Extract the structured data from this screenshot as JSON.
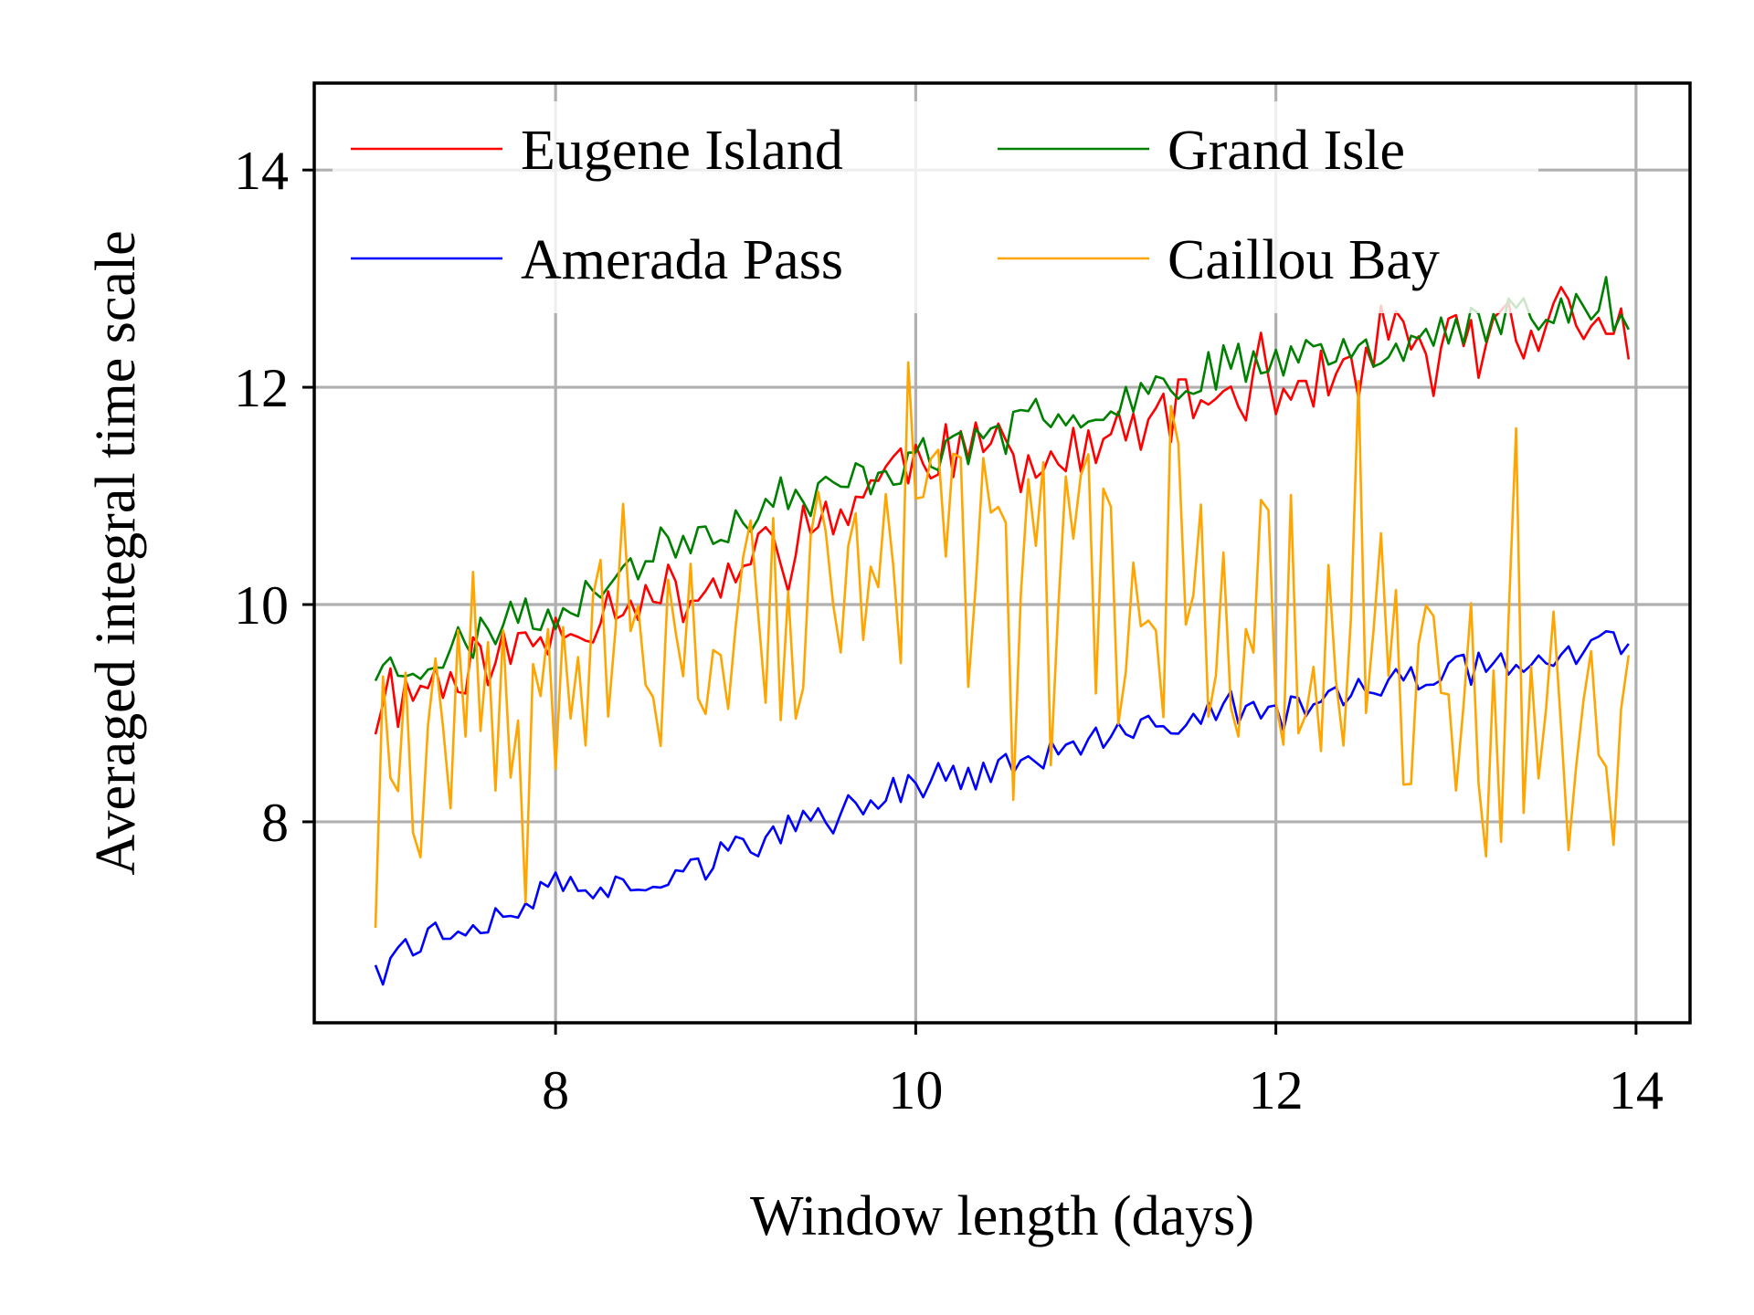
{
  "chart_data": {
    "type": "line",
    "xlabel": "Window length (days)",
    "ylabel": "Averaged integral time scale",
    "xlim": [
      6.66,
      14.3
    ],
    "ylim": [
      6.15,
      14.8
    ],
    "xticks": [
      8,
      10,
      12,
      14
    ],
    "yticks": [
      8,
      10,
      12,
      14
    ],
    "xtick_labels": [
      "8",
      "10",
      "12",
      "14"
    ],
    "ytick_labels": [
      "8",
      "10",
      "12",
      "14"
    ],
    "grid": true,
    "legend_position": "top-left",
    "legend_columns": 2,
    "x": {
      "start": 7.0,
      "step": 0.04167,
      "count": 168
    },
    "series": [
      {
        "name": "Eugene Island",
        "color": "#ff0000",
        "anchors": [
          [
            7.0,
            8.95
          ],
          [
            7.3,
            9.3
          ],
          [
            7.6,
            9.5
          ],
          [
            8.0,
            9.7
          ],
          [
            8.4,
            10.1
          ],
          [
            8.8,
            10.1
          ],
          [
            9.2,
            10.5
          ],
          [
            9.6,
            10.9
          ],
          [
            10.0,
            11.4
          ],
          [
            10.4,
            11.4
          ],
          [
            10.8,
            11.3
          ],
          [
            11.2,
            11.6
          ],
          [
            11.6,
            11.9
          ],
          [
            12.0,
            12.0
          ],
          [
            12.4,
            12.1
          ],
          [
            12.8,
            12.4
          ],
          [
            13.2,
            12.5
          ],
          [
            13.6,
            12.6
          ],
          [
            13.96,
            12.5
          ]
        ],
        "noise": 0.28,
        "seed": 11
      },
      {
        "name": "Grand Isle",
        "color": "#008000",
        "anchors": [
          [
            7.0,
            9.4
          ],
          [
            7.3,
            9.5
          ],
          [
            7.6,
            9.75
          ],
          [
            8.0,
            9.95
          ],
          [
            8.4,
            10.35
          ],
          [
            8.8,
            10.7
          ],
          [
            9.2,
            10.85
          ],
          [
            9.6,
            11.1
          ],
          [
            10.0,
            11.35
          ],
          [
            10.4,
            11.5
          ],
          [
            10.8,
            11.75
          ],
          [
            11.2,
            11.95
          ],
          [
            11.6,
            12.15
          ],
          [
            12.0,
            12.3
          ],
          [
            12.4,
            12.35
          ],
          [
            12.8,
            12.45
          ],
          [
            13.2,
            12.6
          ],
          [
            13.6,
            12.8
          ],
          [
            13.96,
            12.6
          ]
        ],
        "noise": 0.2,
        "seed": 23
      },
      {
        "name": "Amerada Pass",
        "color": "#0000ff",
        "anchors": [
          [
            7.0,
            6.75
          ],
          [
            7.3,
            6.95
          ],
          [
            7.6,
            7.1
          ],
          [
            8.0,
            7.4
          ],
          [
            8.4,
            7.4
          ],
          [
            8.8,
            7.65
          ],
          [
            9.2,
            7.85
          ],
          [
            9.6,
            8.15
          ],
          [
            10.0,
            8.35
          ],
          [
            10.4,
            8.45
          ],
          [
            10.8,
            8.65
          ],
          [
            11.2,
            8.8
          ],
          [
            11.6,
            9.0
          ],
          [
            12.0,
            9.05
          ],
          [
            12.4,
            9.15
          ],
          [
            12.8,
            9.35
          ],
          [
            13.2,
            9.45
          ],
          [
            13.6,
            9.55
          ],
          [
            13.96,
            9.7
          ]
        ],
        "noise": 0.14,
        "seed": 37
      },
      {
        "name": "Caillou Bay",
        "color": "#ffa500",
        "anchors": [
          [
            7.0,
            9.0
          ],
          [
            7.3,
            9.1
          ],
          [
            7.6,
            9.5
          ],
          [
            8.0,
            9.6
          ],
          [
            8.4,
            9.7
          ],
          [
            8.8,
            9.8
          ],
          [
            9.2,
            9.9
          ],
          [
            9.6,
            10.0
          ],
          [
            10.0,
            10.2
          ],
          [
            10.4,
            10.3
          ],
          [
            10.8,
            10.2
          ],
          [
            11.2,
            10.1
          ],
          [
            11.6,
            10.0
          ],
          [
            12.0,
            9.9
          ],
          [
            12.4,
            9.7
          ],
          [
            12.8,
            9.4
          ],
          [
            13.2,
            9.0
          ],
          [
            13.6,
            9.0
          ],
          [
            13.96,
            8.6
          ]
        ],
        "noise": 1.25,
        "seed": 53
      }
    ]
  }
}
